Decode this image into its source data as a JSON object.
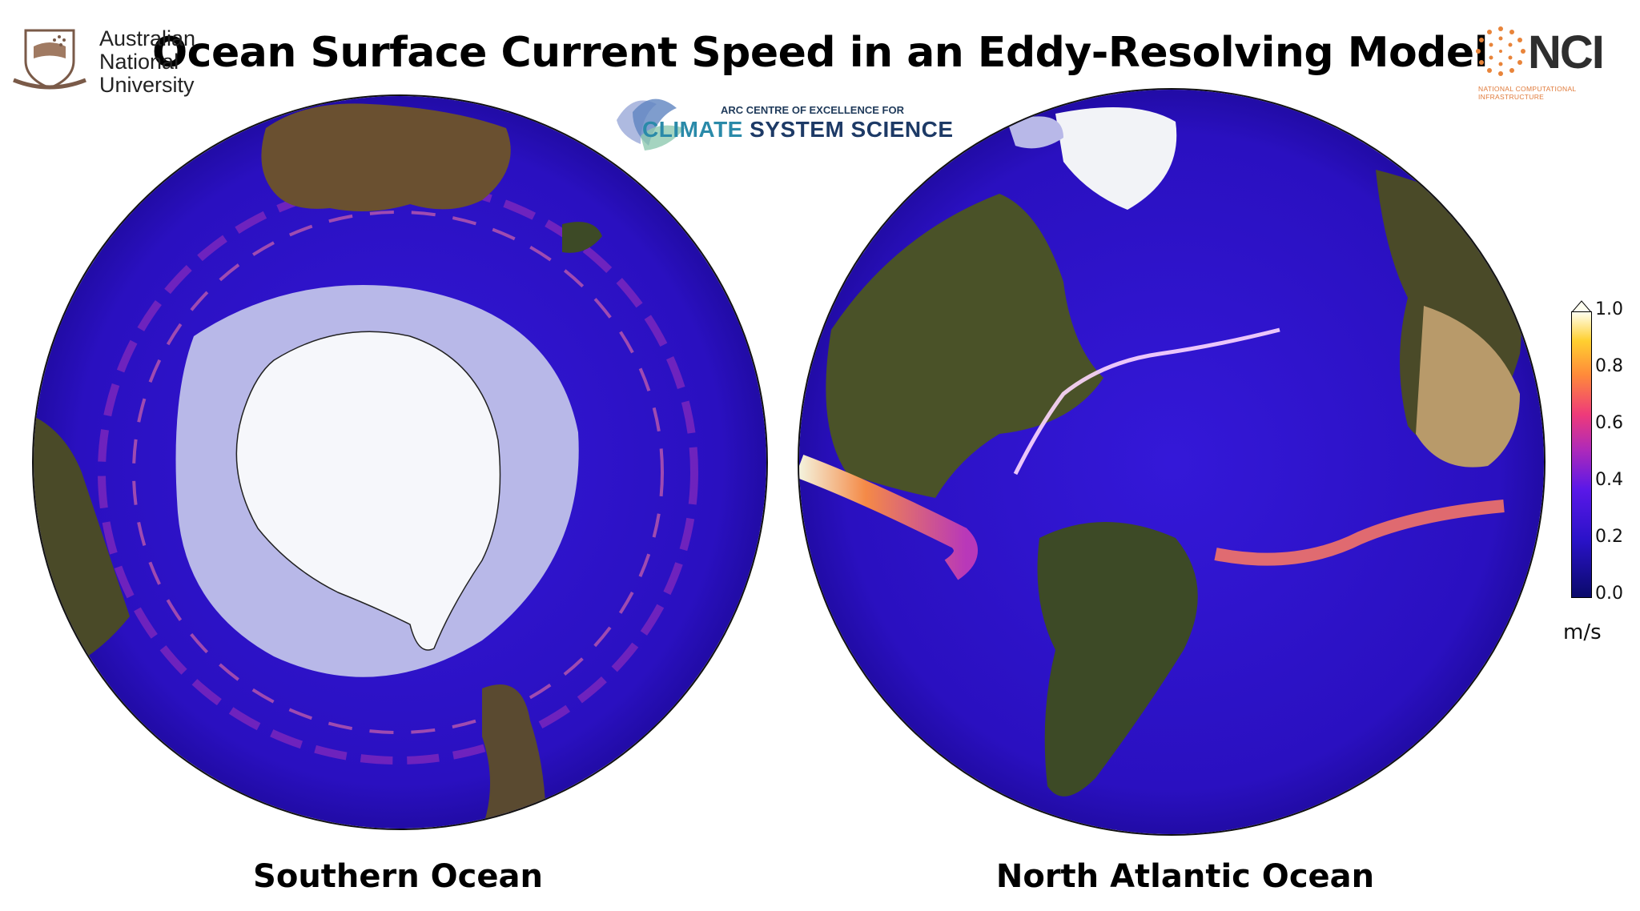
{
  "title": "Ocean Surface Current Speed in an Eddy-Resolving Model",
  "logos": {
    "anu": {
      "lines": [
        "Australian",
        "National",
        "University"
      ]
    },
    "nci": {
      "word": "NCI",
      "subtitle": "NATIONAL COMPUTATIONAL INFRASTRUCTURE"
    },
    "climate": {
      "top": "ARC CENTRE OF EXCELLENCE FOR",
      "main_a": "CLIMATE ",
      "main_b": "SYSTEM SCIENCE"
    }
  },
  "panels": [
    {
      "label": "Southern Ocean"
    },
    {
      "label": "North Atlantic Ocean"
    }
  ],
  "colorbar": {
    "ticks": [
      "1.0",
      "0.8",
      "0.6",
      "0.4",
      "0.2",
      "0.0"
    ],
    "units": "m/s",
    "min": 0.0,
    "max": 1.0
  },
  "colors": {
    "ocean": "#2a12c8",
    "ice_shelf": "#b8b8e8",
    "land": "#3d4a26",
    "desert": "#b89a6a"
  }
}
